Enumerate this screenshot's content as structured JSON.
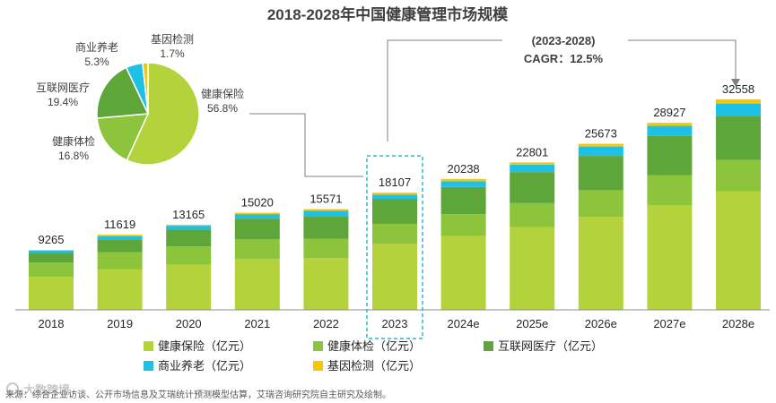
{
  "chart_data": {
    "type": "stacked-bar",
    "title": "2018-2028年中国健康管理市场规模",
    "categories": [
      "2018",
      "2019",
      "2020",
      "2021",
      "2022",
      "2023",
      "2024e",
      "2025e",
      "2026e",
      "2027e",
      "2028e"
    ],
    "totals": [
      9265,
      11619,
      13165,
      15020,
      15571,
      18107,
      20238,
      22801,
      25673,
      28927,
      32558
    ],
    "series": [
      {
        "name": "健康保险（亿元）",
        "color": "#b4d23c",
        "values": [
          5100,
          6300,
          7000,
          7900,
          8000,
          10200,
          11400,
          12800,
          14400,
          16200,
          18300
        ]
      },
      {
        "name": "健康体检（亿元）",
        "color": "#8cc43c",
        "values": [
          2200,
          2600,
          2800,
          3000,
          3000,
          3100,
          3400,
          3700,
          4100,
          4600,
          4900
        ]
      },
      {
        "name": "互联网医疗（亿元）",
        "color": "#5ea63a",
        "values": [
          1500,
          2000,
          2600,
          3200,
          3500,
          3800,
          4200,
          4800,
          5300,
          6100,
          6800
        ]
      },
      {
        "name": "商业养老（亿元）",
        "color": "#1ec0e6",
        "values": [
          350,
          500,
          600,
          700,
          800,
          700,
          900,
          1150,
          1450,
          1550,
          1900
        ]
      },
      {
        "name": "基因检测（亿元）",
        "color": "#f5c800",
        "values": [
          115,
          219,
          165,
          220,
          271,
          307,
          338,
          351,
          423,
          477,
          658
        ]
      }
    ],
    "highlight_category": "2023",
    "ylim": [
      0,
      36000
    ],
    "pie": {
      "slices": [
        {
          "name": "健康保险",
          "pct": "56.8%",
          "value": 56.8,
          "color": "#b4d23c"
        },
        {
          "name": "健康体检",
          "pct": "16.8%",
          "value": 16.8,
          "color": "#8cc43c"
        },
        {
          "name": "互联网医疗",
          "pct": "19.4%",
          "value": 19.4,
          "color": "#5ea63a"
        },
        {
          "name": "商业养老",
          "pct": "5.3%",
          "value": 5.3,
          "color": "#1ec0e6"
        },
        {
          "name": "基因检测",
          "pct": "1.7%",
          "value": 1.7,
          "color": "#f5c800"
        }
      ]
    },
    "annotation": {
      "line1": "(2023-2028)",
      "line2": "CAGR：12.5%"
    }
  },
  "source_text": "来源：综合企业访谈、公开市场信息及艾瑞统计预测模型估算，艾瑞咨询研究院自主研究及绘制。",
  "watermark": "大数跨境",
  "colors": {
    "axis": "#8c8c8c",
    "highlight": "#2ab7d8",
    "connector": "#808080"
  }
}
